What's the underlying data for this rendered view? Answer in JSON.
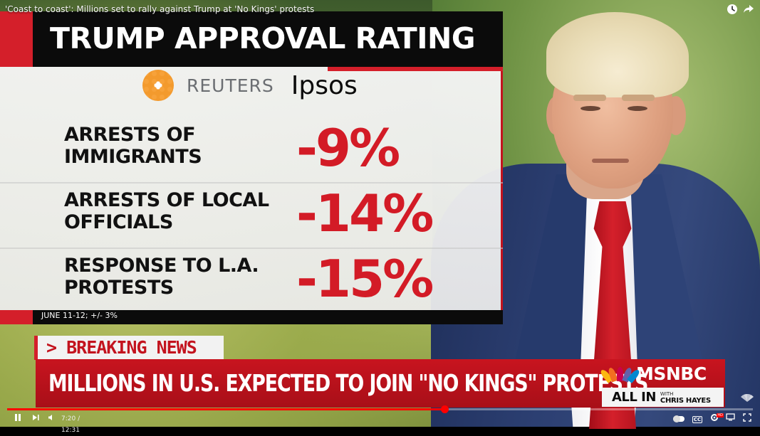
{
  "video": {
    "title": "'Coast to coast': Millions set to rally against Trump at 'No Kings' protests",
    "progress_fraction": 0.586
  },
  "graphic": {
    "title": "TRUMP APPROVAL RATING",
    "sources": [
      "REUTERS",
      "Ipsos"
    ],
    "rows": [
      {
        "label": "ARRESTS OF IMMIGRANTS",
        "value": "-9%"
      },
      {
        "label": "ARRESTS OF LOCAL OFFICIALS",
        "value": "-14%"
      },
      {
        "label": "RESPONSE TO L.A. PROTESTS",
        "value": "-15%"
      }
    ],
    "footnote": "JUNE 11-12; +/- 3%"
  },
  "lower_third": {
    "tag": "> BREAKING NEWS",
    "headline": "MILLIONS IN U.S. EXPECTED TO JOIN \"NO KINGS\" PROTESTS",
    "network": "MSNBC",
    "show_main": "ALL IN",
    "show_with": "WITH",
    "show_host": "CHRIS HAYES"
  },
  "controls": {
    "time": "7:20 / 12:31"
  },
  "colors": {
    "accent_red": "#d41f2a",
    "value_red": "#d31b26",
    "progress_red": "#ff0000"
  },
  "icons": [
    "clock-icon",
    "share-icon",
    "pause-icon",
    "next-icon",
    "volume-icon",
    "autoplay-icon",
    "captions-icon",
    "settings-icon",
    "cast-icon",
    "fullscreen-icon"
  ]
}
